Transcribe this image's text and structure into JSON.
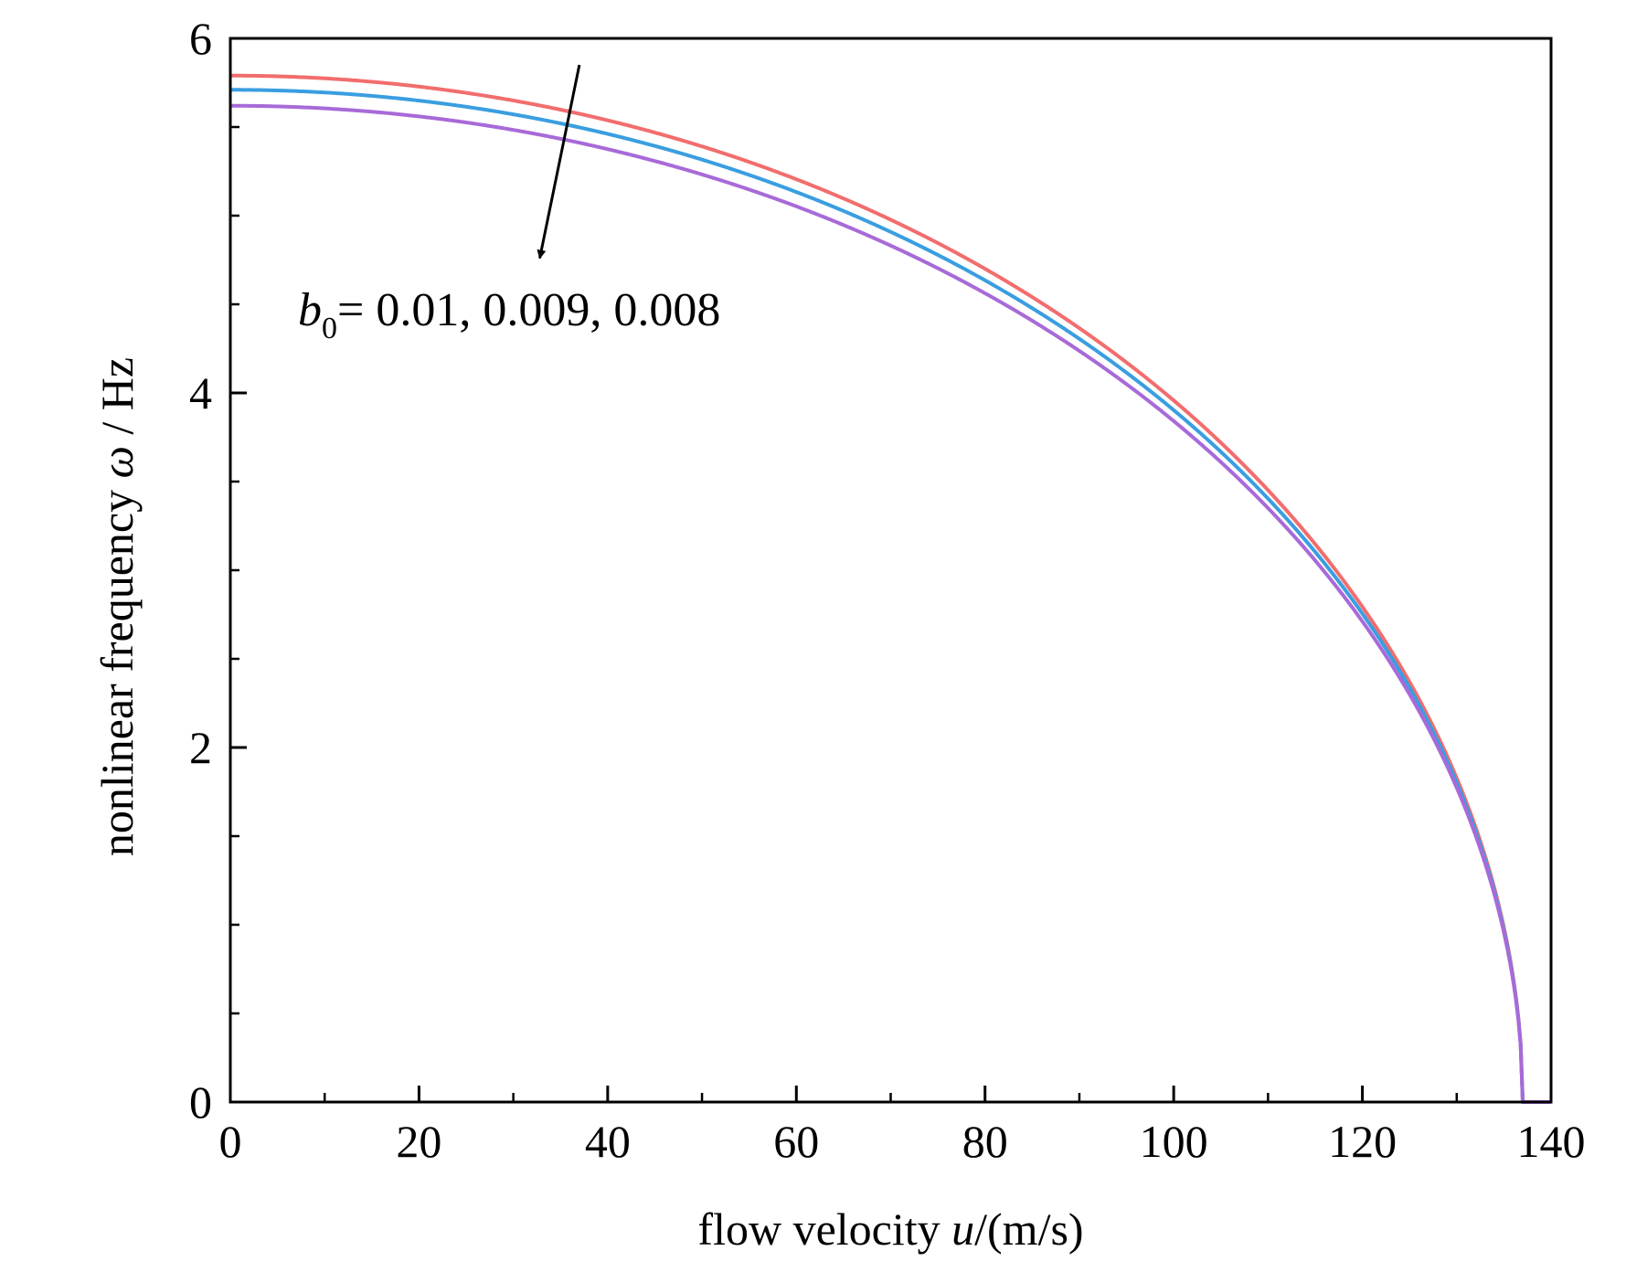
{
  "chart_data": {
    "type": "line",
    "xlabel": {
      "prefix": "flow velocity ",
      "variable": "u",
      "suffix": "/(m/s)"
    },
    "ylabel": {
      "prefix": "nonlinear frequency ",
      "variable": "ω",
      "suffix": " / Hz"
    },
    "xlim": [
      0,
      140
    ],
    "ylim": [
      0,
      6
    ],
    "x_ticks": [
      0,
      20,
      40,
      60,
      80,
      100,
      120,
      140
    ],
    "y_ticks": [
      0,
      2,
      4,
      6
    ],
    "x_minor_step": 10,
    "y_minor_step": 0.5,
    "grid": false,
    "critical_velocity": 137.0,
    "series": [
      {
        "b0": 0.01,
        "color": "#f26d6d",
        "omega_at_zero_flow": 5.79
      },
      {
        "b0": 0.009,
        "color": "#3a9ee0",
        "omega_at_zero_flow": 5.71
      },
      {
        "b0": 0.008,
        "color": "#a86ad8",
        "omega_at_zero_flow": 5.62
      }
    ],
    "annotation": {
      "symbol": "b",
      "subscript": "0",
      "text": "= 0.01, 0.009, 0.008",
      "arrow_from": [
        37,
        5.85
      ],
      "arrow_to": [
        32.8,
        4.76
      ]
    }
  }
}
